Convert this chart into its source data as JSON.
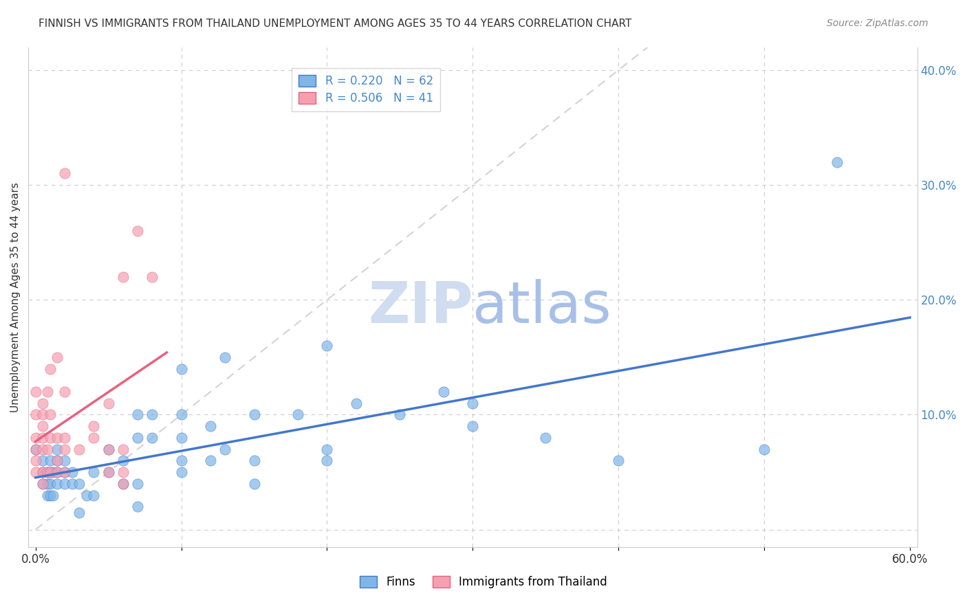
{
  "title": "FINNISH VS IMMIGRANTS FROM THAILAND UNEMPLOYMENT AMONG AGES 35 TO 44 YEARS CORRELATION CHART",
  "source": "Source: ZipAtlas.com",
  "xlabel": "",
  "ylabel": "Unemployment Among Ages 35 to 44 years",
  "xlim": [
    0.0,
    0.6
  ],
  "ylim": [
    -0.01,
    0.42
  ],
  "xticks": [
    0.0,
    0.1,
    0.2,
    0.3,
    0.4,
    0.5,
    0.6
  ],
  "xticklabels": [
    "0.0%",
    "",
    "",
    "",
    "",
    "",
    "60.0%"
  ],
  "yticks_right": [
    0.0,
    0.1,
    0.2,
    0.3,
    0.4
  ],
  "yticklabels_right": [
    "",
    "10.0%",
    "20.0%",
    "30.0%",
    "40.0%"
  ],
  "legend_r_finns": "R = 0.220",
  "legend_n_finns": "N = 62",
  "legend_r_thai": "R = 0.506",
  "legend_n_thai": "N = 41",
  "color_finns": "#7EB6E8",
  "color_thai": "#F4A0B0",
  "color_line_finns": "#4477CC",
  "color_line_thai": "#E86080",
  "color_trend_finns_dashed": "#C0C0C0",
  "watermark_text": "ZIPatlas",
  "watermark_color": "#D0DCF0",
  "finns_x": [
    0.0,
    0.005,
    0.005,
    0.005,
    0.008,
    0.008,
    0.008,
    0.01,
    0.01,
    0.01,
    0.01,
    0.012,
    0.012,
    0.015,
    0.015,
    0.015,
    0.015,
    0.02,
    0.02,
    0.02,
    0.025,
    0.025,
    0.03,
    0.03,
    0.035,
    0.04,
    0.04,
    0.05,
    0.05,
    0.06,
    0.06,
    0.07,
    0.07,
    0.07,
    0.07,
    0.08,
    0.08,
    0.1,
    0.1,
    0.1,
    0.1,
    0.1,
    0.12,
    0.12,
    0.13,
    0.13,
    0.15,
    0.15,
    0.15,
    0.18,
    0.2,
    0.2,
    0.2,
    0.22,
    0.25,
    0.28,
    0.3,
    0.3,
    0.35,
    0.4,
    0.5,
    0.55
  ],
  "finns_y": [
    0.07,
    0.04,
    0.05,
    0.06,
    0.03,
    0.04,
    0.05,
    0.03,
    0.04,
    0.05,
    0.06,
    0.03,
    0.05,
    0.04,
    0.05,
    0.06,
    0.07,
    0.04,
    0.05,
    0.06,
    0.04,
    0.05,
    0.015,
    0.04,
    0.03,
    0.03,
    0.05,
    0.05,
    0.07,
    0.04,
    0.06,
    0.02,
    0.04,
    0.08,
    0.1,
    0.08,
    0.1,
    0.05,
    0.06,
    0.08,
    0.1,
    0.14,
    0.06,
    0.09,
    0.07,
    0.15,
    0.04,
    0.06,
    0.1,
    0.1,
    0.06,
    0.07,
    0.16,
    0.11,
    0.1,
    0.12,
    0.09,
    0.11,
    0.08,
    0.06,
    0.07,
    0.32
  ],
  "thai_x": [
    0.0,
    0.0,
    0.0,
    0.0,
    0.0,
    0.0,
    0.005,
    0.005,
    0.005,
    0.005,
    0.005,
    0.005,
    0.005,
    0.008,
    0.008,
    0.008,
    0.01,
    0.01,
    0.01,
    0.01,
    0.015,
    0.015,
    0.015,
    0.015,
    0.02,
    0.02,
    0.02,
    0.02,
    0.02,
    0.03,
    0.04,
    0.04,
    0.05,
    0.05,
    0.05,
    0.06,
    0.06,
    0.06,
    0.06,
    0.07,
    0.08
  ],
  "thai_y": [
    0.05,
    0.06,
    0.07,
    0.08,
    0.1,
    0.12,
    0.04,
    0.05,
    0.07,
    0.08,
    0.09,
    0.1,
    0.11,
    0.05,
    0.07,
    0.12,
    0.05,
    0.08,
    0.1,
    0.14,
    0.05,
    0.06,
    0.08,
    0.15,
    0.05,
    0.07,
    0.08,
    0.12,
    0.31,
    0.07,
    0.08,
    0.09,
    0.05,
    0.07,
    0.11,
    0.04,
    0.05,
    0.07,
    0.22,
    0.26,
    0.22
  ]
}
